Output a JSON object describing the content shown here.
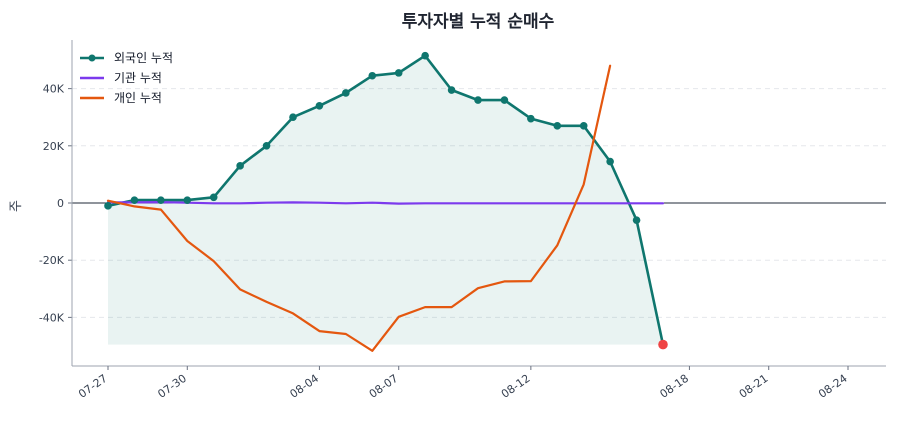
{
  "chart_data": {
    "type": "line",
    "title": "투자자별 누적 순매수",
    "xlabel": "",
    "ylabel": "주",
    "ylim": [
      -57000,
      57000
    ],
    "yticks": [
      -40000,
      -20000,
      0,
      20000,
      40000
    ],
    "ytick_labels": [
      "-40K",
      "-20K",
      "0",
      "20K",
      "40K"
    ],
    "x": [
      "07-27",
      "07-28",
      "07-29",
      "07-30",
      "07-31",
      "08-01",
      "08-02",
      "08-03",
      "08-04",
      "08-05",
      "08-06",
      "08-07",
      "08-08",
      "08-09",
      "08-10",
      "08-11",
      "08-12",
      "08-13",
      "08-14",
      "08-15",
      "08-16",
      "08-17",
      "08-18",
      "08-19",
      "08-20",
      "08-21",
      "08-22",
      "08-23",
      "08-24"
    ],
    "xticks": [
      "07-27",
      "07-30",
      "08-04",
      "08-07",
      "08-12",
      "08-18",
      "08-21",
      "08-24"
    ],
    "grid": true,
    "legend": "top-left",
    "series": [
      {
        "name": "외국인 누적",
        "color": "#0f766e",
        "marker": true,
        "fill": true,
        "x": [
          "07-27",
          "07-28",
          "07-29",
          "07-30",
          "07-31",
          "08-01",
          "08-02",
          "08-03",
          "08-04",
          "08-05",
          "08-06",
          "08-07",
          "08-08",
          "08-09",
          "08-10",
          "08-11",
          "08-12",
          "08-13",
          "08-14",
          "08-15",
          "08-16",
          "08-17",
          "08-18",
          "08-19",
          "08-20",
          "08-21",
          "08-22",
          "08-23",
          "08-24"
        ],
        "values": [
          -1000,
          1000,
          1000,
          1000,
          2000,
          13000,
          20000,
          30000,
          34000,
          38500,
          44500,
          45500,
          51500,
          39500,
          36000,
          36000,
          29500,
          27000,
          27000,
          14500,
          -6000,
          -49500,
          null,
          null,
          null,
          null,
          null,
          null,
          null
        ]
      },
      {
        "name": "기관 누적",
        "color": "#7c3aed",
        "marker": false,
        "fill": false,
        "values": [
          200,
          200,
          300,
          100,
          -100,
          -100,
          100,
          200,
          100,
          -100,
          100,
          -200,
          -100,
          -100,
          -100,
          -100,
          -100,
          -100,
          -100,
          -100,
          -100,
          -100,
          null,
          null,
          null,
          null,
          null,
          null,
          null
        ]
      },
      {
        "name": "개인 누적",
        "color": "#e4570f",
        "marker": false,
        "fill": false,
        "values": [
          800,
          -1200,
          -2300,
          -13300,
          -20300,
          -30200,
          -34600,
          -38600,
          -44800,
          -45800,
          -51700,
          -39800,
          -36400,
          -36400,
          -29800,
          -27400,
          -27300,
          -14800,
          6500,
          48000,
          null,
          null,
          null,
          null,
          null,
          null,
          null,
          null,
          null
        ]
      }
    ],
    "highlight_color": "#ef4444"
  }
}
